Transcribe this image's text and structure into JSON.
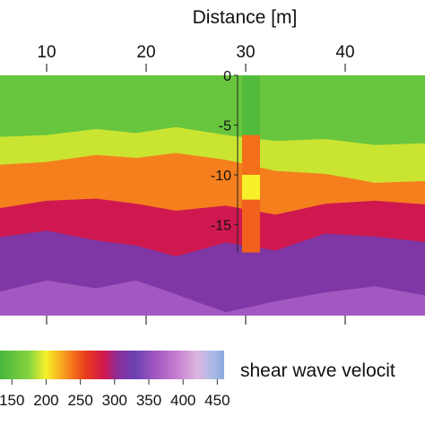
{
  "chart_data": {
    "type": "heatmap",
    "title": "",
    "xlabel": "Distance [m]",
    "ylabel": "",
    "x_ticks": [
      10,
      20,
      30,
      40
    ],
    "x_range": [
      0.5,
      48
    ],
    "depth_range": [
      0,
      -24
    ],
    "colorbar": {
      "label": "shear wave velocit",
      "ticks": [
        150,
        200,
        250,
        300,
        350,
        400,
        450
      ],
      "range": [
        130,
        460
      ],
      "stops": [
        {
          "v": 130,
          "color": "#43b43d"
        },
        {
          "v": 175,
          "color": "#86d33f"
        },
        {
          "v": 200,
          "color": "#f7f02a"
        },
        {
          "v": 220,
          "color": "#f8b01f"
        },
        {
          "v": 240,
          "color": "#f46f1c"
        },
        {
          "v": 260,
          "color": "#e7371f"
        },
        {
          "v": 285,
          "color": "#d01850"
        },
        {
          "v": 305,
          "color": "#8b2e9a"
        },
        {
          "v": 330,
          "color": "#6a44b2"
        },
        {
          "v": 360,
          "color": "#a257c1"
        },
        {
          "v": 390,
          "color": "#c67cce"
        },
        {
          "v": 420,
          "color": "#dcb6e0"
        },
        {
          "v": 445,
          "color": "#a8b9e6"
        },
        {
          "v": 460,
          "color": "#8ea7df"
        }
      ]
    },
    "layer_boundaries": [
      {
        "name": "green-yellow",
        "velocity": 190,
        "x": [
          0.5,
          5,
          10,
          15,
          19,
          23,
          28,
          33,
          38,
          43,
          48
        ],
        "depth": [
          -6.3,
          -6.2,
          -6.0,
          -5.4,
          -5.8,
          -5.2,
          -6.0,
          -6.6,
          -6.4,
          -7.0,
          -6.8
        ]
      },
      {
        "name": "yellow-orange",
        "velocity": 235,
        "x": [
          0.5,
          5,
          10,
          15,
          19,
          23,
          28,
          33,
          38,
          43,
          48
        ],
        "depth": [
          -9.2,
          -9.0,
          -8.7,
          -8.0,
          -8.3,
          -7.8,
          -8.5,
          -9.6,
          -9.9,
          -10.8,
          -10.6
        ]
      },
      {
        "name": "red-magenta",
        "velocity": 285,
        "x": [
          0.5,
          5,
          10,
          15,
          19,
          23,
          28,
          33,
          38,
          43,
          48
        ],
        "depth": [
          -14.2,
          -13.4,
          -12.6,
          -12.4,
          -12.9,
          -13.6,
          -13.1,
          -14.0,
          -12.9,
          -12.6,
          -13.0
        ]
      },
      {
        "name": "magenta-purple",
        "velocity": 315,
        "x": [
          0.5,
          5,
          10,
          15,
          19,
          23,
          28,
          33,
          38,
          43,
          48
        ],
        "depth": [
          -16.0,
          -16.3,
          -15.6,
          -16.6,
          -17.1,
          -18.2,
          -16.8,
          -17.6,
          -15.9,
          -16.2,
          -16.8
        ]
      },
      {
        "name": "purple-lilac",
        "velocity": 360,
        "x": [
          0.5,
          5,
          10,
          15,
          19,
          23,
          28,
          33,
          38,
          43,
          48
        ],
        "depth": [
          -23.5,
          -21.8,
          -20.6,
          -21.4,
          -20.6,
          -22.0,
          -23.8,
          -22.7,
          -21.8,
          -21.2,
          -22.2
        ]
      }
    ],
    "borehole": {
      "x": 30,
      "depth_axis_ticks": [
        0,
        -5,
        -10,
        -15
      ],
      "segments": [
        {
          "from": 0,
          "to": -6.0,
          "velocity": 140
        },
        {
          "from": -6.0,
          "to": -10.0,
          "velocity": 240
        },
        {
          "from": -10.0,
          "to": -12.5,
          "velocity": 200
        },
        {
          "from": -12.5,
          "to": -17.8,
          "velocity": 245
        }
      ]
    }
  }
}
